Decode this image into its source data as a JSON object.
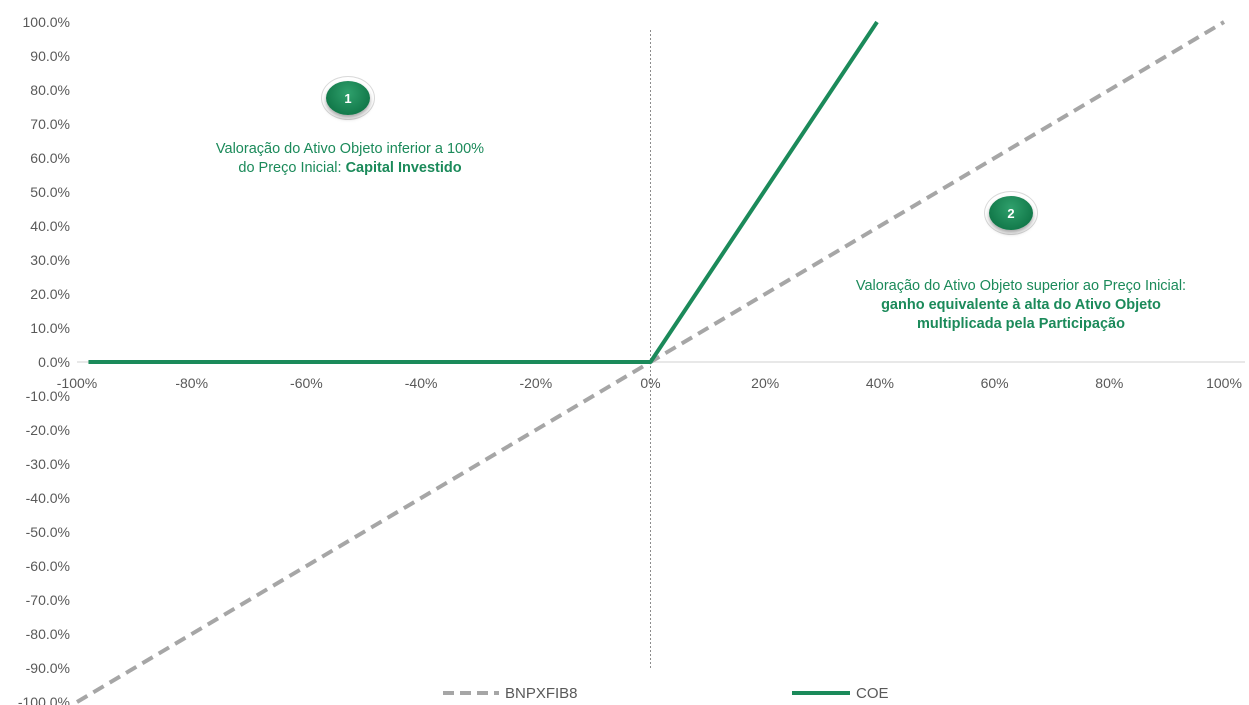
{
  "chart_data": {
    "type": "line",
    "x_ticks": [
      "-100%",
      "-80%",
      "-60%",
      "-40%",
      "-20%",
      "0%",
      "20%",
      "40%",
      "60%",
      "80%",
      "100%"
    ],
    "y_ticks": [
      "100.0%",
      "90.0%",
      "80.0%",
      "70.0%",
      "60.0%",
      "50.0%",
      "40.0%",
      "30.0%",
      "20.0%",
      "10.0%",
      "0.0%",
      "-10.0%",
      "-20.0%",
      "-30.0%",
      "-40.0%",
      "-50.0%",
      "-60.0%",
      "-70.0%",
      "-80.0%",
      "-90.0%",
      "-100.0%"
    ],
    "xlim": [
      -1.0,
      1.0
    ],
    "ylim": [
      -1.0,
      1.0
    ],
    "series": [
      {
        "name": "BNPXFIB8",
        "color": "#a6a6a6",
        "style": "dashed",
        "x": [
          -1.0,
          1.0
        ],
        "y": [
          -1.0,
          1.0
        ]
      },
      {
        "name": "COE",
        "color": "#1b8a5a",
        "style": "solid",
        "x": [
          -0.98,
          0.0,
          0.395
        ],
        "y": [
          0.0,
          0.0,
          1.0
        ]
      }
    ],
    "reference_line": {
      "x": 0.0,
      "style": "dotted"
    },
    "annotations": [
      {
        "badge": "1",
        "line1": "Valoração do Ativo Objeto inferior a 100%",
        "line2_plain": "do Preço Inicial: ",
        "line2_bold": "Capital Investido"
      },
      {
        "badge": "2",
        "line1": "Valoração do Ativo Objeto superior ao Preço Inicial:",
        "line2_bold": "ganho equivalente à alta do Ativo Objeto",
        "line3_bold": "multiplicada pela Participação"
      }
    ],
    "legend_position": "bottom",
    "grid": false
  }
}
